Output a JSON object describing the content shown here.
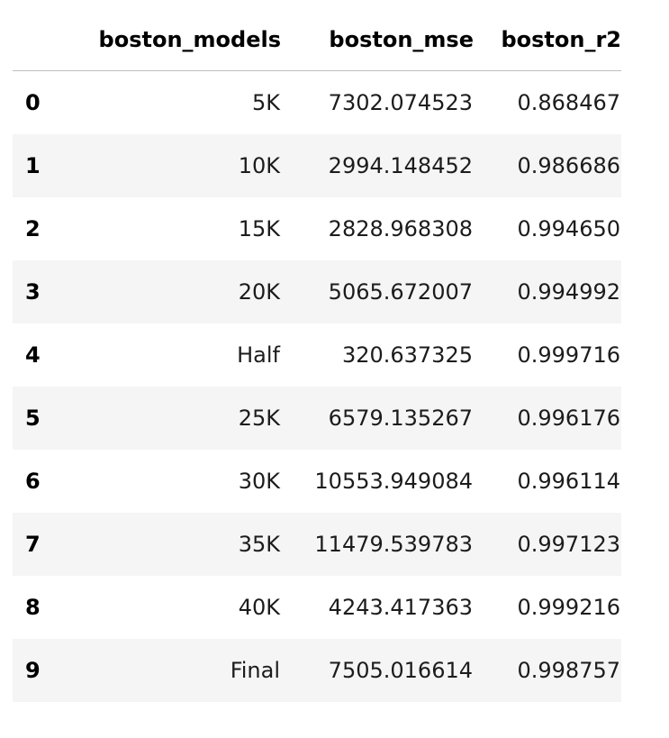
{
  "table": {
    "columns": [
      "",
      "boston_models",
      "boston_mse",
      "boston_r2"
    ],
    "rows": [
      {
        "index": "0",
        "boston_models": "5K",
        "boston_mse": "7302.074523",
        "boston_r2": "0.868467"
      },
      {
        "index": "1",
        "boston_models": "10K",
        "boston_mse": "2994.148452",
        "boston_r2": "0.986686"
      },
      {
        "index": "2",
        "boston_models": "15K",
        "boston_mse": "2828.968308",
        "boston_r2": "0.994650"
      },
      {
        "index": "3",
        "boston_models": "20K",
        "boston_mse": "5065.672007",
        "boston_r2": "0.994992"
      },
      {
        "index": "4",
        "boston_models": "Half",
        "boston_mse": "320.637325",
        "boston_r2": "0.999716"
      },
      {
        "index": "5",
        "boston_models": "25K",
        "boston_mse": "6579.135267",
        "boston_r2": "0.996176"
      },
      {
        "index": "6",
        "boston_models": "30K",
        "boston_mse": "10553.949084",
        "boston_r2": "0.996114"
      },
      {
        "index": "7",
        "boston_models": "35K",
        "boston_mse": "11479.539783",
        "boston_r2": "0.997123"
      },
      {
        "index": "8",
        "boston_models": "40K",
        "boston_mse": "4243.417363",
        "boston_r2": "0.999216"
      },
      {
        "index": "9",
        "boston_models": "Final",
        "boston_mse": "7505.016614",
        "boston_r2": "0.998757"
      }
    ]
  },
  "colors": {
    "stripe": "#f5f5f5",
    "header_rule": "#bdbdbd"
  }
}
